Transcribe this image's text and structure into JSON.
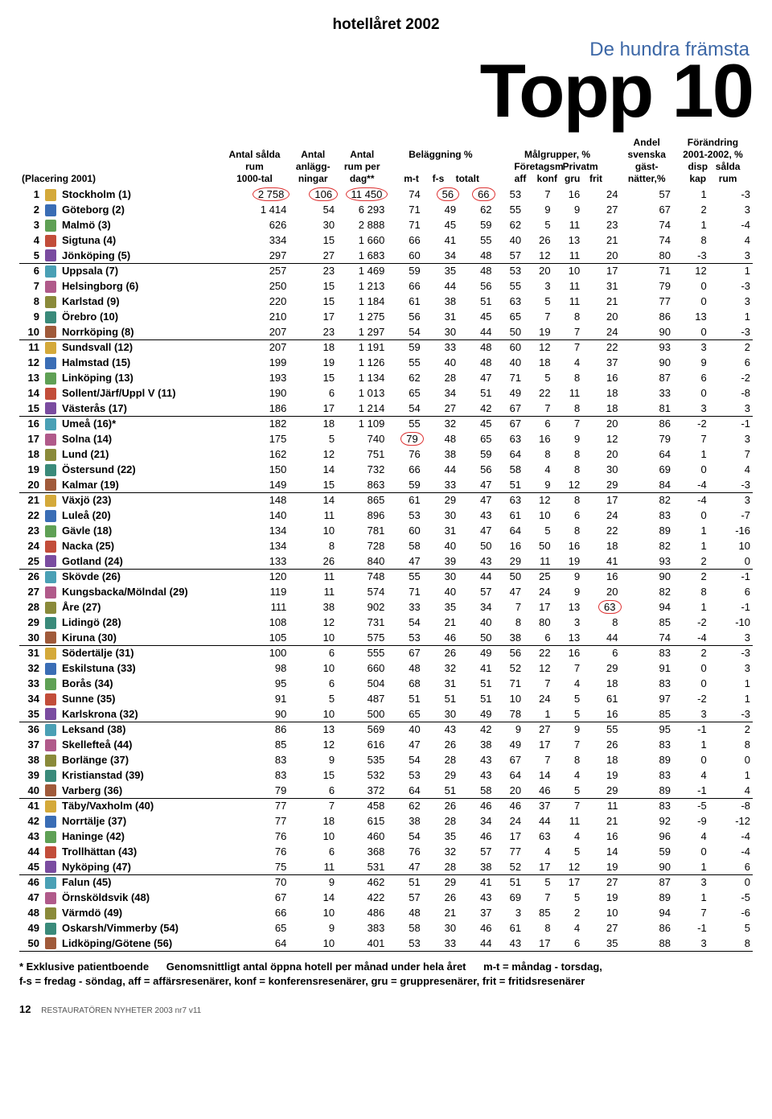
{
  "header": {
    "top_title": "hotellåret 2002",
    "subtitle": "De hundra främsta",
    "big_title": "Topp 10"
  },
  "columns": {
    "placering": "(Placering 2001)",
    "antal_salda_rum": "Antal sålda\nrum\n1000-tal",
    "antal_anlagg": "Antal\nanlägg-\nningar",
    "antal_rum_per_dag": "Antal\nrum per\ndag**",
    "belaggning_group": "Beläggning %",
    "belaggning_mt": "m-t",
    "belaggning_fs": "f-s",
    "belaggning_tot": "totalt",
    "malgrupper_group": "Målgrupper, %",
    "malgrupper_aff": "Företagsm\naff",
    "malgrupper_konf": "konf",
    "malgrupper_gru": "Privatm\ngru",
    "malgrupper_frit": "frit",
    "andel_svenska": "Andel\nsvenska\ngäst-\nnätter,%",
    "forandring_group": "Förändring\n2001-2002, %",
    "forandring_disp": "disp\nkap",
    "forandring_salda": "sålda\nrum"
  },
  "crest_colors": [
    "#d4a93a",
    "#3a6db5",
    "#5fa055",
    "#c24d3a",
    "#7a4ca0",
    "#4aa0b5",
    "#b05a8a",
    "#8a8a3a",
    "#3a8a7a",
    "#a05a3a"
  ],
  "rows": [
    {
      "r": 1,
      "name": "Stockholm (1)",
      "v": [
        "2 758",
        "106",
        "11 450",
        "74",
        "56",
        "66",
        "53",
        "7",
        "16",
        "24",
        "57",
        "1",
        "-3"
      ],
      "circle": [
        0,
        1,
        2,
        4,
        5
      ],
      "sep": false
    },
    {
      "r": 2,
      "name": "Göteborg (2)",
      "v": [
        "1 414",
        "54",
        "6 293",
        "71",
        "49",
        "62",
        "55",
        "9",
        "9",
        "27",
        "67",
        "2",
        "3"
      ]
    },
    {
      "r": 3,
      "name": "Malmö (3)",
      "v": [
        "626",
        "30",
        "2 888",
        "71",
        "45",
        "59",
        "62",
        "5",
        "11",
        "23",
        "74",
        "1",
        "-4"
      ]
    },
    {
      "r": 4,
      "name": "Sigtuna (4)",
      "v": [
        "334",
        "15",
        "1 660",
        "66",
        "41",
        "55",
        "40",
        "26",
        "13",
        "21",
        "74",
        "8",
        "4"
      ]
    },
    {
      "r": 5,
      "name": "Jönköping (5)",
      "v": [
        "297",
        "27",
        "1 683",
        "60",
        "34",
        "48",
        "57",
        "12",
        "11",
        "20",
        "80",
        "-3",
        "3"
      ],
      "sep": true
    },
    {
      "r": 6,
      "name": "Uppsala (7)",
      "v": [
        "257",
        "23",
        "1 469",
        "59",
        "35",
        "48",
        "53",
        "20",
        "10",
        "17",
        "71",
        "12",
        "1"
      ]
    },
    {
      "r": 7,
      "name": "Helsingborg (6)",
      "v": [
        "250",
        "15",
        "1 213",
        "66",
        "44",
        "56",
        "55",
        "3",
        "11",
        "31",
        "79",
        "0",
        "-3"
      ]
    },
    {
      "r": 8,
      "name": "Karlstad (9)",
      "v": [
        "220",
        "15",
        "1 184",
        "61",
        "38",
        "51",
        "63",
        "5",
        "11",
        "21",
        "77",
        "0",
        "3"
      ]
    },
    {
      "r": 9,
      "name": "Örebro (10)",
      "v": [
        "210",
        "17",
        "1 275",
        "56",
        "31",
        "45",
        "65",
        "7",
        "8",
        "20",
        "86",
        "13",
        "1"
      ]
    },
    {
      "r": 10,
      "name": "Norrköping (8)",
      "v": [
        "207",
        "23",
        "1 297",
        "54",
        "30",
        "44",
        "50",
        "19",
        "7",
        "24",
        "90",
        "0",
        "-3"
      ],
      "sep": true
    },
    {
      "r": 11,
      "name": "Sundsvall (12)",
      "v": [
        "207",
        "18",
        "1 191",
        "59",
        "33",
        "48",
        "60",
        "12",
        "7",
        "22",
        "93",
        "3",
        "2"
      ]
    },
    {
      "r": 12,
      "name": "Halmstad (15)",
      "v": [
        "199",
        "19",
        "1 126",
        "55",
        "40",
        "48",
        "40",
        "18",
        "4",
        "37",
        "90",
        "9",
        "6"
      ]
    },
    {
      "r": 13,
      "name": "Linköping (13)",
      "v": [
        "193",
        "15",
        "1 134",
        "62",
        "28",
        "47",
        "71",
        "5",
        "8",
        "16",
        "87",
        "6",
        "-2"
      ]
    },
    {
      "r": 14,
      "name": "Sollent/Järf/Uppl V (11)",
      "v": [
        "190",
        "6",
        "1 013",
        "65",
        "34",
        "51",
        "49",
        "22",
        "11",
        "18",
        "33",
        "0",
        "-8"
      ]
    },
    {
      "r": 15,
      "name": "Västerås (17)",
      "v": [
        "186",
        "17",
        "1 214",
        "54",
        "27",
        "42",
        "67",
        "7",
        "8",
        "18",
        "81",
        "3",
        "3"
      ],
      "sep": true
    },
    {
      "r": 16,
      "name": "Umeå (16)*",
      "v": [
        "182",
        "18",
        "1 109",
        "55",
        "32",
        "45",
        "67",
        "6",
        "7",
        "20",
        "86",
        "-2",
        "-1"
      ]
    },
    {
      "r": 17,
      "name": "Solna (14)",
      "v": [
        "175",
        "5",
        "740",
        "79",
        "48",
        "65",
        "63",
        "16",
        "9",
        "12",
        "79",
        "7",
        "3"
      ],
      "circle": [
        3
      ]
    },
    {
      "r": 18,
      "name": "Lund (21)",
      "v": [
        "162",
        "12",
        "751",
        "76",
        "38",
        "59",
        "64",
        "8",
        "8",
        "20",
        "64",
        "1",
        "7"
      ]
    },
    {
      "r": 19,
      "name": "Östersund (22)",
      "v": [
        "150",
        "14",
        "732",
        "66",
        "44",
        "56",
        "58",
        "4",
        "8",
        "30",
        "69",
        "0",
        "4"
      ]
    },
    {
      "r": 20,
      "name": "Kalmar (19)",
      "v": [
        "149",
        "15",
        "863",
        "59",
        "33",
        "47",
        "51",
        "9",
        "12",
        "29",
        "84",
        "-4",
        "-3"
      ],
      "sep": true
    },
    {
      "r": 21,
      "name": "Växjö (23)",
      "v": [
        "148",
        "14",
        "865",
        "61",
        "29",
        "47",
        "63",
        "12",
        "8",
        "17",
        "82",
        "-4",
        "3"
      ]
    },
    {
      "r": 22,
      "name": "Luleå (20)",
      "v": [
        "140",
        "11",
        "896",
        "53",
        "30",
        "43",
        "61",
        "10",
        "6",
        "24",
        "83",
        "0",
        "-7"
      ]
    },
    {
      "r": 23,
      "name": "Gävle (18)",
      "v": [
        "134",
        "10",
        "781",
        "60",
        "31",
        "47",
        "64",
        "5",
        "8",
        "22",
        "89",
        "1",
        "-16"
      ]
    },
    {
      "r": 24,
      "name": "Nacka (25)",
      "v": [
        "134",
        "8",
        "728",
        "58",
        "40",
        "50",
        "16",
        "50",
        "16",
        "18",
        "82",
        "1",
        "10"
      ]
    },
    {
      "r": 25,
      "name": "Gotland (24)",
      "v": [
        "133",
        "26",
        "840",
        "47",
        "39",
        "43",
        "29",
        "11",
        "19",
        "41",
        "93",
        "2",
        "0"
      ],
      "sep": true
    },
    {
      "r": 26,
      "name": "Skövde (26)",
      "v": [
        "120",
        "11",
        "748",
        "55",
        "30",
        "44",
        "50",
        "25",
        "9",
        "16",
        "90",
        "2",
        "-1"
      ]
    },
    {
      "r": 27,
      "name": "Kungsbacka/Mölndal (29)",
      "v": [
        "119",
        "11",
        "574",
        "71",
        "40",
        "57",
        "47",
        "24",
        "9",
        "20",
        "82",
        "8",
        "6"
      ]
    },
    {
      "r": 28,
      "name": "Åre (27)",
      "v": [
        "111",
        "38",
        "902",
        "33",
        "35",
        "34",
        "7",
        "17",
        "13",
        "63",
        "94",
        "1",
        "-1"
      ],
      "circle": [
        9
      ]
    },
    {
      "r": 29,
      "name": "Lidingö (28)",
      "v": [
        "108",
        "12",
        "731",
        "54",
        "21",
        "40",
        "8",
        "80",
        "3",
        "8",
        "85",
        "-2",
        "-10"
      ]
    },
    {
      "r": 30,
      "name": "Kiruna (30)",
      "v": [
        "105",
        "10",
        "575",
        "53",
        "46",
        "50",
        "38",
        "6",
        "13",
        "44",
        "74",
        "-4",
        "3"
      ],
      "sep": true
    },
    {
      "r": 31,
      "name": "Södertälje (31)",
      "v": [
        "100",
        "6",
        "555",
        "67",
        "26",
        "49",
        "56",
        "22",
        "16",
        "6",
        "83",
        "2",
        "-3"
      ]
    },
    {
      "r": 32,
      "name": "Eskilstuna (33)",
      "v": [
        "98",
        "10",
        "660",
        "48",
        "32",
        "41",
        "52",
        "12",
        "7",
        "29",
        "91",
        "0",
        "3"
      ]
    },
    {
      "r": 33,
      "name": "Borås (34)",
      "v": [
        "95",
        "6",
        "504",
        "68",
        "31",
        "51",
        "71",
        "7",
        "4",
        "18",
        "83",
        "0",
        "1"
      ]
    },
    {
      "r": 34,
      "name": "Sunne (35)",
      "v": [
        "91",
        "5",
        "487",
        "51",
        "51",
        "51",
        "10",
        "24",
        "5",
        "61",
        "97",
        "-2",
        "1"
      ]
    },
    {
      "r": 35,
      "name": "Karlskrona (32)",
      "v": [
        "90",
        "10",
        "500",
        "65",
        "30",
        "49",
        "78",
        "1",
        "5",
        "16",
        "85",
        "3",
        "-3"
      ],
      "sep": true
    },
    {
      "r": 36,
      "name": "Leksand (38)",
      "v": [
        "86",
        "13",
        "569",
        "40",
        "43",
        "42",
        "9",
        "27",
        "9",
        "55",
        "95",
        "-1",
        "2"
      ]
    },
    {
      "r": 37,
      "name": "Skellefteå (44)",
      "v": [
        "85",
        "12",
        "616",
        "47",
        "26",
        "38",
        "49",
        "17",
        "7",
        "26",
        "83",
        "1",
        "8"
      ]
    },
    {
      "r": 38,
      "name": "Borlänge (37)",
      "v": [
        "83",
        "9",
        "535",
        "54",
        "28",
        "43",
        "67",
        "7",
        "8",
        "18",
        "89",
        "0",
        "0"
      ]
    },
    {
      "r": 39,
      "name": "Kristianstad (39)",
      "v": [
        "83",
        "15",
        "532",
        "53",
        "29",
        "43",
        "64",
        "14",
        "4",
        "19",
        "83",
        "4",
        "1"
      ]
    },
    {
      "r": 40,
      "name": "Varberg (36)",
      "v": [
        "79",
        "6",
        "372",
        "64",
        "51",
        "58",
        "20",
        "46",
        "5",
        "29",
        "89",
        "-1",
        "4"
      ],
      "sep": true
    },
    {
      "r": 41,
      "name": "Täby/Vaxholm (40)",
      "v": [
        "77",
        "7",
        "458",
        "62",
        "26",
        "46",
        "46",
        "37",
        "7",
        "11",
        "83",
        "-5",
        "-8"
      ]
    },
    {
      "r": 42,
      "name": "Norrtälje (37)",
      "v": [
        "77",
        "18",
        "615",
        "38",
        "28",
        "34",
        "24",
        "44",
        "11",
        "21",
        "92",
        "-9",
        "-12"
      ]
    },
    {
      "r": 43,
      "name": "Haninge (42)",
      "v": [
        "76",
        "10",
        "460",
        "54",
        "35",
        "46",
        "17",
        "63",
        "4",
        "16",
        "96",
        "4",
        "-4"
      ]
    },
    {
      "r": 44,
      "name": "Trollhättan (43)",
      "v": [
        "76",
        "6",
        "368",
        "76",
        "32",
        "57",
        "77",
        "4",
        "5",
        "14",
        "59",
        "0",
        "-4"
      ]
    },
    {
      "r": 45,
      "name": "Nyköping (47)",
      "v": [
        "75",
        "11",
        "531",
        "47",
        "28",
        "38",
        "52",
        "17",
        "12",
        "19",
        "90",
        "1",
        "6"
      ],
      "sep": true
    },
    {
      "r": 46,
      "name": "Falun (45)",
      "v": [
        "70",
        "9",
        "462",
        "51",
        "29",
        "41",
        "51",
        "5",
        "17",
        "27",
        "87",
        "3",
        "0"
      ]
    },
    {
      "r": 47,
      "name": "Örnsköldsvik (48)",
      "v": [
        "67",
        "14",
        "422",
        "57",
        "26",
        "43",
        "69",
        "7",
        "5",
        "19",
        "89",
        "1",
        "-5"
      ]
    },
    {
      "r": 48,
      "name": "Värmdö (49)",
      "v": [
        "66",
        "10",
        "486",
        "48",
        "21",
        "37",
        "3",
        "85",
        "2",
        "10",
        "94",
        "7",
        "-6"
      ]
    },
    {
      "r": 49,
      "name": "Oskarsh/Vimmerby (54)",
      "v": [
        "65",
        "9",
        "383",
        "58",
        "30",
        "46",
        "61",
        "8",
        "4",
        "27",
        "86",
        "-1",
        "5"
      ]
    },
    {
      "r": 50,
      "name": "Lidköping/Götene (56)",
      "v": [
        "64",
        "10",
        "401",
        "53",
        "33",
        "44",
        "43",
        "17",
        "6",
        "35",
        "88",
        "3",
        "8"
      ],
      "sep": true
    }
  ],
  "footnote": {
    "line1a": "* Exklusive patientboende",
    "line1b": "Genomsnittligt antal öppna hotell per månad under hela året",
    "line1c": "m-t = måndag - torsdag,",
    "line2": "f-s = fredag - söndag, aff = affärsresenärer, konf = konferensresenärer, gru = gruppresenärer, frit = fritidsresenärer"
  },
  "footer": {
    "page": "12",
    "pub": "RESTAURATÖREN NYHETER 2003 nr7 v11"
  }
}
